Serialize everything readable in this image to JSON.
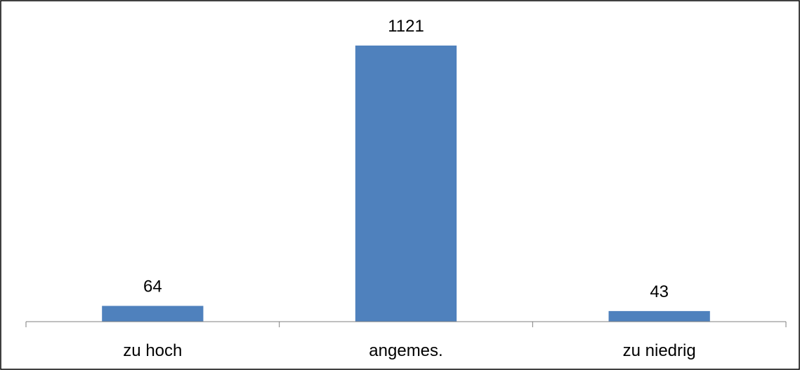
{
  "chart_data": {
    "type": "bar",
    "title": "",
    "xlabel": "",
    "ylabel": "",
    "categories": [
      "zu hoch",
      "angemes.",
      "zu niedrig"
    ],
    "values": [
      64,
      1121,
      43
    ],
    "data_labels": [
      "64",
      "1121",
      "43"
    ],
    "ylim": [
      0,
      1121
    ],
    "grid": false,
    "legend": "none",
    "bar_color": "#4f81bd"
  }
}
